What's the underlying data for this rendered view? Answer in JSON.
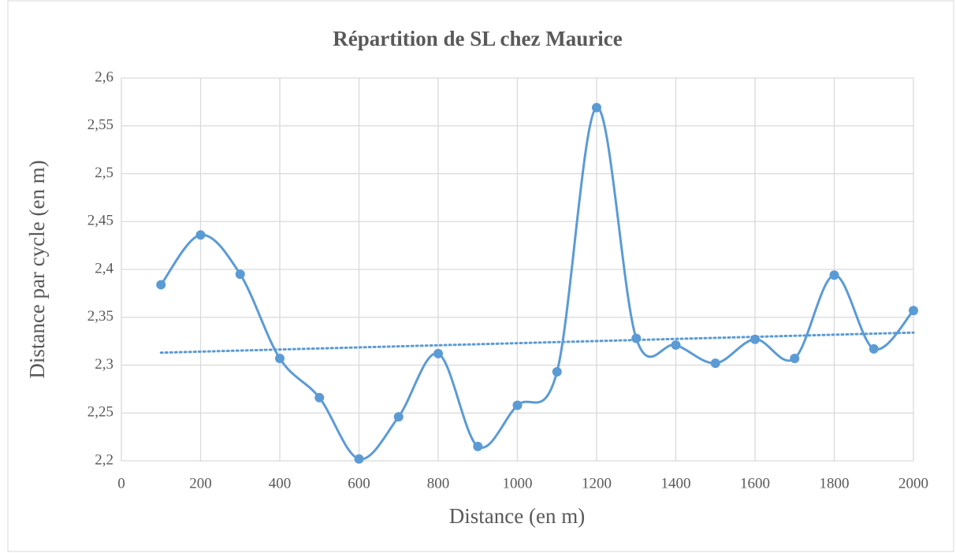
{
  "chart_data": {
    "type": "line",
    "title": "Répartition de SL chez Maurice",
    "x_label": "Distance (en m)",
    "y_label": "Distance par cycle (en m)",
    "x": [
      100,
      200,
      300,
      400,
      500,
      600,
      700,
      800,
      900,
      1000,
      1100,
      1200,
      1300,
      1400,
      1500,
      1600,
      1700,
      1800,
      1900,
      2000
    ],
    "series": [
      {
        "color": "#5b9bd5",
        "values": [
          2.384,
          2.436,
          2.395,
          2.307,
          2.266,
          2.202,
          2.246,
          2.312,
          2.215,
          2.258,
          2.293,
          2.569,
          2.328,
          2.321,
          2.302,
          2.327,
          2.307,
          2.394,
          2.317,
          2.357
        ]
      }
    ],
    "trendline": {
      "x": [
        100,
        2000
      ],
      "values": [
        2.313,
        2.334
      ],
      "color": "#5b9bd5",
      "style": "dotted"
    },
    "xlim": [
      0,
      2000
    ],
    "xticks": [
      0,
      200,
      400,
      600,
      800,
      1000,
      1200,
      1400,
      1600,
      1800,
      2000
    ],
    "ylim": [
      2.2,
      2.6
    ],
    "yticks": [
      {
        "value": 2.2,
        "label": "2,2"
      },
      {
        "value": 2.25,
        "label": "2,25"
      },
      {
        "value": 2.3,
        "label": "2,3"
      },
      {
        "value": 2.35,
        "label": "2,35"
      },
      {
        "value": 2.4,
        "label": "2,4"
      },
      {
        "value": 2.45,
        "label": "2,45"
      },
      {
        "value": 2.5,
        "label": "2,5"
      },
      {
        "value": 2.55,
        "label": "2,55"
      },
      {
        "value": 2.6,
        "label": "2,6"
      }
    ],
    "grid": true,
    "smooth": true
  }
}
